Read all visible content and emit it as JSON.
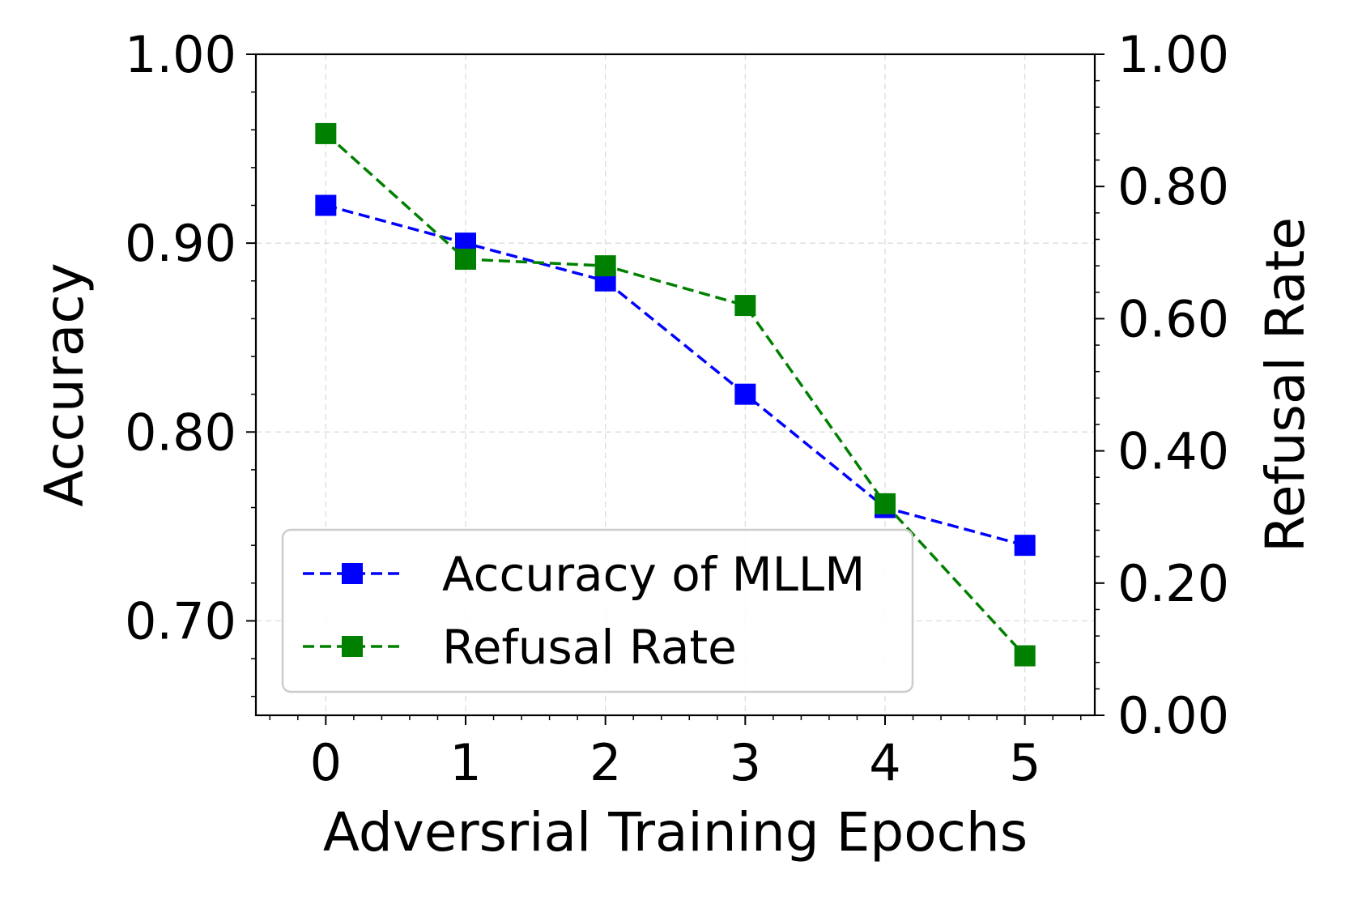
{
  "chart_data": {
    "type": "line",
    "title": "",
    "xlabel": "Adversrial Training Epochs",
    "ylabel_left": "Accuracy",
    "ylabel_right": "Refusal Rate",
    "x": [
      0,
      1,
      2,
      3,
      4,
      5
    ],
    "xlim": [
      -0.5,
      5.5
    ],
    "x_ticks": [
      "0",
      "1",
      "2",
      "3",
      "4",
      "5"
    ],
    "ylim_left": [
      0.65,
      1.0
    ],
    "y_ticks_left": [
      "0.70",
      "0.80",
      "0.90",
      "1.00"
    ],
    "y_tick_values_left": [
      0.7,
      0.8,
      0.9,
      1.0
    ],
    "ylim_right": [
      0.0,
      1.0
    ],
    "y_ticks_right": [
      "0.00",
      "0.20",
      "0.40",
      "0.60",
      "0.80",
      "1.00"
    ],
    "y_tick_values_right": [
      0.0,
      0.2,
      0.4,
      0.6,
      0.8,
      1.0
    ],
    "grid": true,
    "legend_position": "lower-left",
    "series": [
      {
        "name": "Accuracy of MLLM",
        "axis": "left",
        "color": "#0000ff",
        "linestyle": "dashed",
        "marker": "square",
        "values": [
          0.92,
          0.9,
          0.88,
          0.82,
          0.76,
          0.74
        ]
      },
      {
        "name": "Refusal Rate",
        "axis": "right",
        "color": "#008000",
        "linestyle": "dashed",
        "marker": "square",
        "values": [
          0.88,
          0.69,
          0.68,
          0.62,
          0.32,
          0.09
        ]
      }
    ]
  }
}
